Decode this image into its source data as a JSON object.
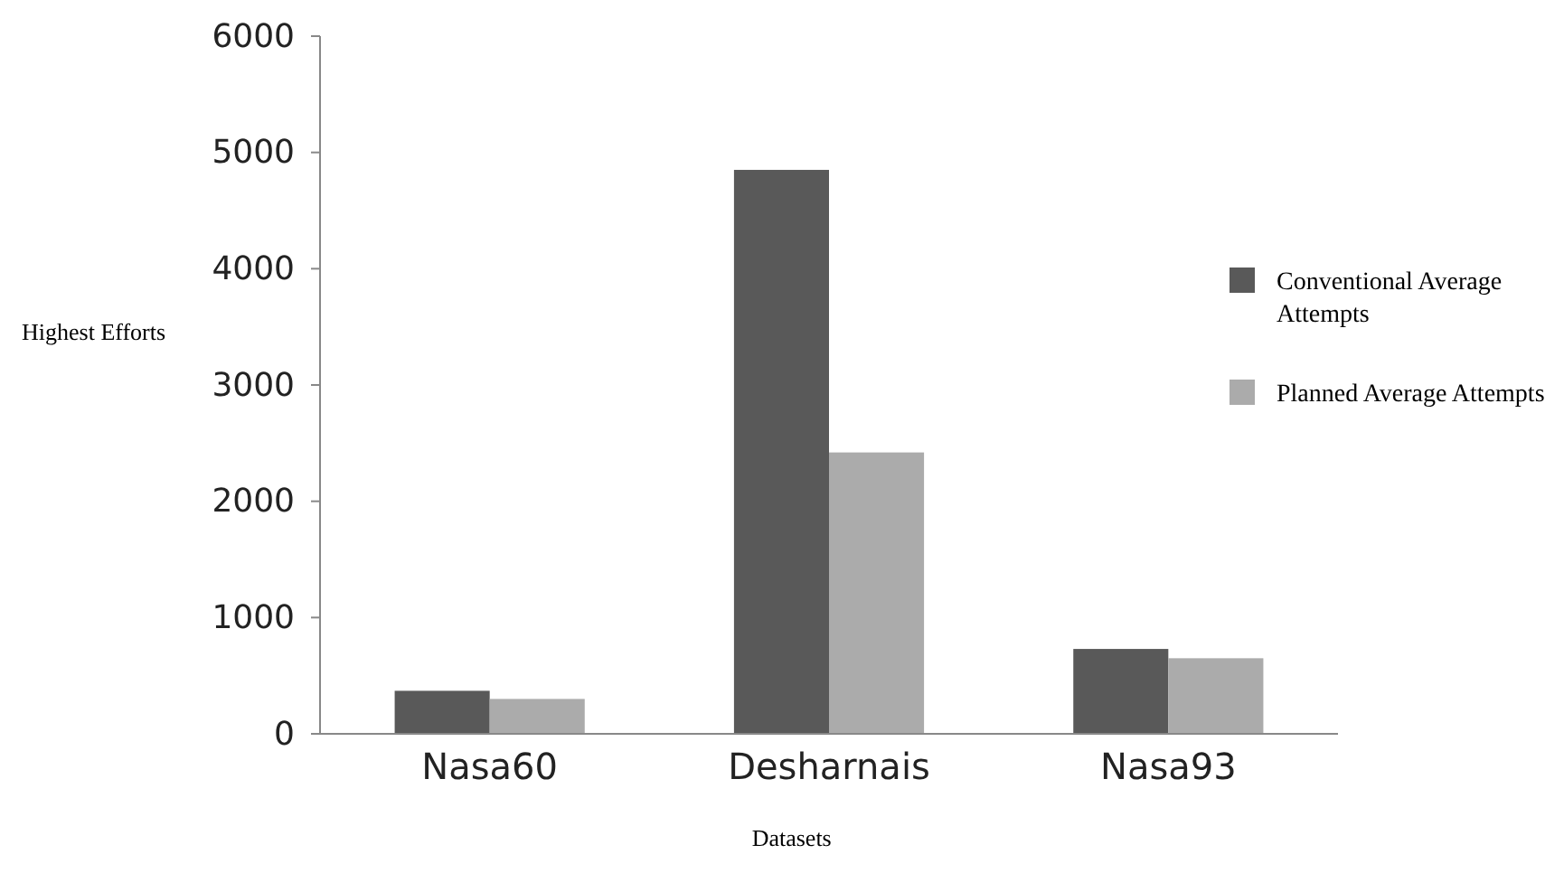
{
  "chart_data": {
    "type": "bar",
    "xlabel": "Datasets",
    "ylabel": "Highest Efforts",
    "categories": [
      "Nasa60",
      "Desharnais",
      "Nasa93"
    ],
    "series": [
      {
        "name": "Conventional Average Attempts",
        "color": "#595959",
        "values": [
          370,
          4850,
          730
        ]
      },
      {
        "name": "Planned Average Attempts",
        "color": "#ababab",
        "values": [
          300,
          2420,
          650
        ]
      }
    ],
    "ylim": [
      0,
      6000
    ],
    "yticks": [
      0,
      1000,
      2000,
      3000,
      4000,
      5000,
      6000
    ],
    "grid": false,
    "legend": "right"
  }
}
